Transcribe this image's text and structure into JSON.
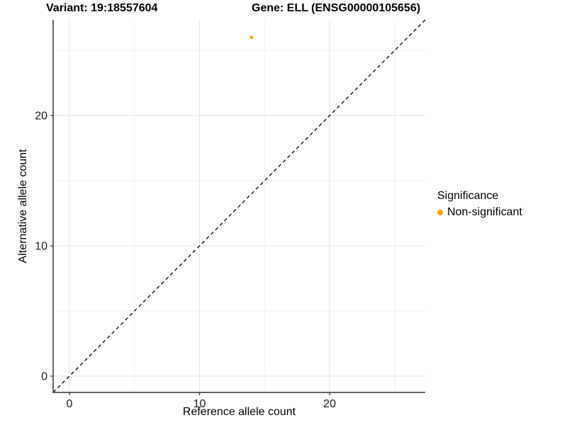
{
  "title": {
    "variant": "Variant: 19:18557604",
    "gene": "Gene: ELL (ENSG00000105656)"
  },
  "axes": {
    "x_label": "Reference allele count",
    "y_label": "Alternative allele count"
  },
  "legend": {
    "title": "Significance",
    "items": [
      {
        "label": "Non-significant",
        "color": "#FFA500"
      }
    ]
  },
  "colors": {
    "point": "#FFA500",
    "grid_major": "#e4e4e4",
    "grid_minor": "#f1f1f1",
    "axis_line": "#4d4d4d",
    "tick_text": "#1a1a1a",
    "identity_line": "#000000",
    "background": "#ffffff"
  },
  "chart_data": {
    "type": "scatter",
    "title": "Variant: 19:18557604    Gene: ELL (ENSG00000105656)",
    "xlabel": "Reference allele count",
    "ylabel": "Alternative allele count",
    "xlim": [
      -1.25,
      27.35
    ],
    "ylim": [
      -1.25,
      27.35
    ],
    "x_major_ticks": [
      0,
      10,
      20
    ],
    "y_major_ticks": [
      0,
      10,
      20
    ],
    "x_minor_ticks": [
      5,
      15,
      25
    ],
    "y_minor_ticks": [
      5,
      15,
      25
    ],
    "grid": true,
    "legend_position": "right",
    "identity_line": {
      "equation": "y = x",
      "style": "dashed",
      "color": "#000000"
    },
    "series": [
      {
        "name": "Non-significant",
        "color": "#FFA500",
        "points": [
          {
            "x": 14,
            "y": 26
          }
        ]
      }
    ]
  }
}
